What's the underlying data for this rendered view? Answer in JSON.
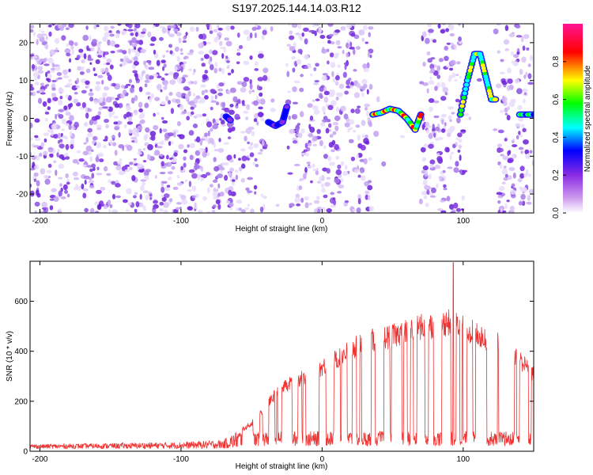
{
  "title": "S197.2025.144.14.03.R12",
  "chart_data": [
    {
      "type": "heatmap",
      "xlabel": "Height of straight line (km)",
      "ylabel": "Frequency (Hz)",
      "xlim": [
        -207,
        150
      ],
      "ylim": [
        -25,
        25
      ],
      "xticks": [
        -200,
        -100,
        0,
        100
      ],
      "xtick_labels": [
        "-200",
        "-100",
        "0",
        "100"
      ],
      "yticks": [
        -20,
        -10,
        0,
        10,
        20
      ],
      "ytick_labels": [
        "-20",
        "-10",
        "0",
        "10",
        "20"
      ],
      "colorbar": {
        "label": "Normalized spectral amplitude",
        "range": [
          0,
          1
        ],
        "ticks": [
          0.0,
          0.2,
          0.4,
          0.6,
          0.8
        ],
        "tick_labels": [
          "0.0",
          "0.2",
          "0.4",
          "0.6",
          "0.8"
        ],
        "colors": [
          "#ffffff",
          "#8a2be2",
          "#0000ff",
          "#00ffff",
          "#00ff00",
          "#ffff00",
          "#ff0000",
          "#ff1493"
        ]
      },
      "blank_bands_km": [
        [
          -40,
          -25
        ],
        [
          35,
          70
        ],
        [
          100,
          125
        ]
      ],
      "features": [
        {
          "x": [
            -68,
            -65
          ],
          "y": [
            0.5,
            -0.5
          ],
          "level": 0.3
        },
        {
          "x": [
            -38,
            -33,
            -28,
            -25
          ],
          "y": [
            -1,
            -2,
            -1,
            3
          ],
          "level": 0.3
        },
        {
          "x": [
            36,
            42,
            48,
            54,
            60,
            66,
            70
          ],
          "y": [
            1,
            1.5,
            2.5,
            2,
            0,
            -3,
            1
          ],
          "level": 0.7
        },
        {
          "x": [
            98,
            103,
            108,
            112,
            116,
            120,
            123
          ],
          "y": [
            1,
            10,
            17,
            17,
            11,
            5,
            5
          ],
          "level": 0.6
        },
        {
          "x": [
            140,
            145,
            150
          ],
          "y": [
            1,
            1,
            1
          ],
          "level": 0.5
        }
      ]
    },
    {
      "type": "line",
      "xlabel": "Height of straight line (km)",
      "ylabel": "SNR (10 * v/v)",
      "xlim": [
        -207,
        150
      ],
      "ylim": [
        0,
        760
      ],
      "xticks": [
        -200,
        -100,
        0,
        100
      ],
      "xtick_labels": [
        "-200",
        "-100",
        "0",
        "100"
      ],
      "yticks": [
        0,
        200,
        400,
        600
      ],
      "ytick_labels": [
        "0",
        "200",
        "400",
        "600"
      ],
      "color": "#ee3333",
      "envelope_x": [
        -207,
        -150,
        -100,
        -70,
        -50,
        -30,
        -10,
        10,
        20,
        30,
        40,
        50,
        60,
        70,
        80,
        90,
        100,
        110,
        120,
        130,
        140,
        150
      ],
      "envelope_y": [
        20,
        25,
        30,
        40,
        120,
        270,
        330,
        400,
        440,
        470,
        490,
        500,
        520,
        540,
        550,
        560,
        540,
        510,
        480,
        450,
        400,
        330
      ],
      "spike_x": 93,
      "spike_y": 755
    }
  ]
}
